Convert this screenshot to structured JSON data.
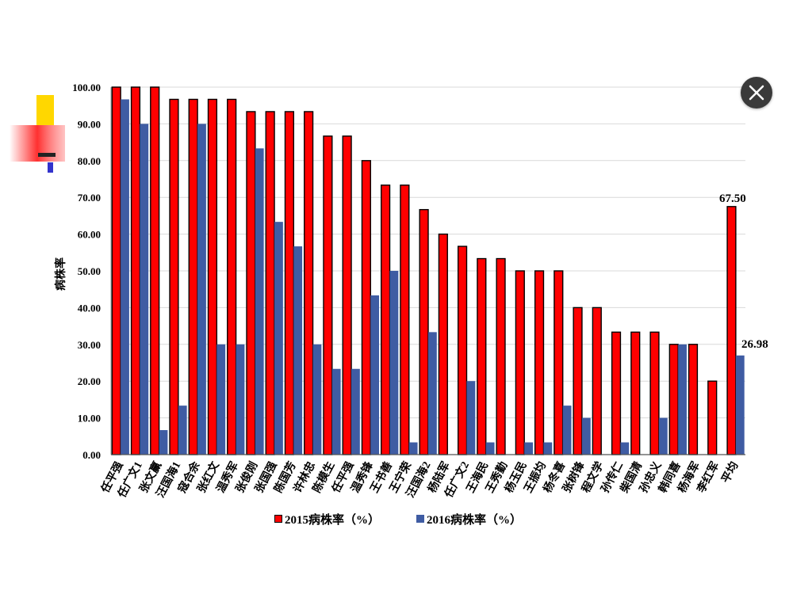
{
  "chart_data": {
    "type": "bar",
    "ylabel": "病株率",
    "ylim": [
      0,
      100
    ],
    "yticks": [
      "0.00",
      "10.00",
      "20.00",
      "30.00",
      "40.00",
      "50.00",
      "60.00",
      "70.00",
      "80.00",
      "90.00",
      "100.00"
    ],
    "grid": true,
    "legend_position": "bottom",
    "categories": [
      "任平强",
      "任广文1",
      "张文赢",
      "汪国海1",
      "寇合余",
      "张红文",
      "温秀军",
      "张俊刚",
      "张国强",
      "陈国芳",
      "许林忠",
      "陈模生",
      "任平强",
      "温秀锋",
      "王书善",
      "王宁荣",
      "汪国海2",
      "杨陆军",
      "任广文2",
      "王海民",
      "王秀勤",
      "杨玉民",
      "王振均",
      "杨冬喜",
      "张树锋",
      "程文学",
      "孙传仁",
      "柴国清",
      "孙忠义",
      "韩同喜",
      "杨海军",
      "李红军",
      "平均"
    ],
    "series": [
      {
        "name": "2015病株率（%）",
        "color": "#ff0000",
        "values": [
          100.0,
          100.0,
          100.0,
          96.67,
          96.67,
          96.67,
          96.67,
          93.33,
          93.33,
          93.33,
          93.33,
          86.67,
          86.67,
          80.0,
          73.33,
          73.33,
          66.67,
          60.0,
          56.67,
          53.33,
          53.33,
          50.0,
          50.0,
          50.0,
          40.0,
          40.0,
          33.33,
          33.33,
          33.33,
          30.0,
          30.0,
          20.0,
          67.5
        ]
      },
      {
        "name": "2016病株率（%）",
        "color": "#3f5ca3",
        "values": [
          96.67,
          90.0,
          6.67,
          13.33,
          90.0,
          30.0,
          30.0,
          83.33,
          63.33,
          56.67,
          30.0,
          23.33,
          23.33,
          43.33,
          50.0,
          3.33,
          33.33,
          0,
          20.0,
          3.33,
          0,
          3.33,
          3.33,
          13.33,
          10.0,
          0,
          3.33,
          0,
          10.0,
          30.0,
          0,
          0,
          26.98
        ]
      }
    ],
    "annotations": [
      "67.50",
      "26.98"
    ]
  },
  "ui": {
    "close_icon": "close-icon",
    "close_button_color": "#3a3a3a",
    "slide_decoration_colors": [
      "#ffd700",
      "#ff2020",
      "#3333cc",
      "#222222"
    ]
  }
}
